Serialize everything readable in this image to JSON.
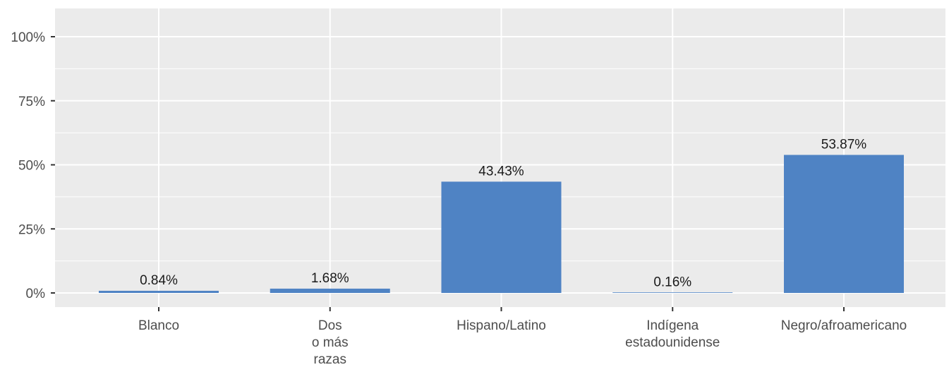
{
  "chart_data": {
    "type": "bar",
    "categories": [
      [
        "Blanco"
      ],
      [
        "Dos",
        "o más",
        "razas"
      ],
      [
        "Hispano/Latino"
      ],
      [
        "Indígena",
        "estadounidense"
      ],
      [
        "Negro/afroamericano"
      ]
    ],
    "values": [
      0.84,
      1.68,
      43.43,
      0.16,
      53.87
    ],
    "data_labels": [
      "0.84%",
      "1.68%",
      "43.43%",
      "0.16%",
      "53.87%"
    ],
    "ylim": [
      0,
      100
    ],
    "yticks": [
      0,
      25,
      50,
      75,
      100
    ],
    "ytick_labels": [
      "0%",
      "25%",
      "50%",
      "75%",
      "100%"
    ],
    "title": "",
    "xlabel": "",
    "ylabel": "",
    "grid": true,
    "colors": {
      "bar": "#4F83C4",
      "panel_background": "#EBEBEB",
      "grid": "#FFFFFF",
      "axis_ticks": "#333333"
    }
  }
}
